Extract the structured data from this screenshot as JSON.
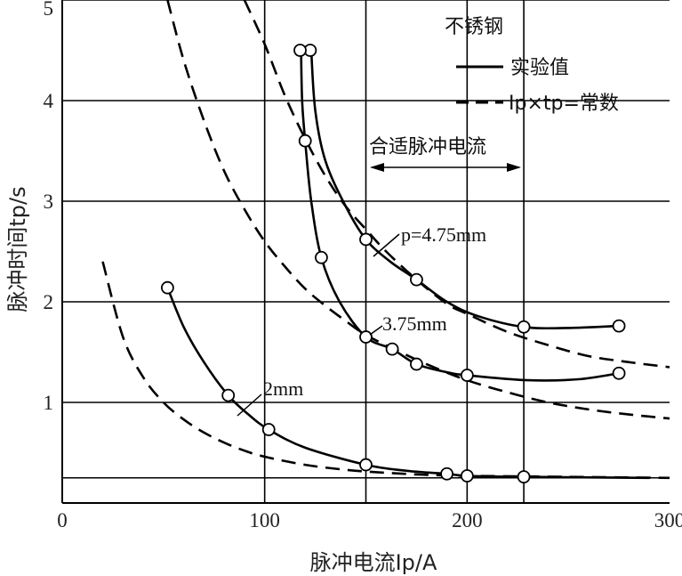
{
  "chart_data": {
    "type": "line",
    "xlabel": "脉冲电流Ip/A",
    "ylabel": "脉冲时间tp/s",
    "xlim": [
      0,
      300
    ],
    "ylim": [
      0,
      5
    ],
    "x_ticks": [
      "0",
      "100",
      "200",
      "300"
    ],
    "y_ticks": [
      "1",
      "2",
      "3",
      "4",
      "5"
    ],
    "grid": true,
    "legend": {
      "title": "不锈钢",
      "placement": "top-right",
      "entries": [
        {
          "label": "实验值",
          "style": "solid"
        },
        {
          "label": "Ip×tp=常数",
          "style": "dashed"
        }
      ]
    },
    "annotations": {
      "range_label": "合适脉冲电流",
      "range": [
        150,
        228
      ],
      "p_label": "p=4.75mm",
      "mid_label": "3.75mm",
      "low_label": "2mm"
    },
    "reference_line_y": 0.25,
    "series": [
      {
        "name": "p=4.75mm",
        "style": "solid",
        "points": [
          [
            122.5,
            4.5
          ],
          [
            150,
            2.62
          ],
          [
            175,
            2.22
          ],
          [
            228,
            1.75
          ],
          [
            275,
            1.76
          ]
        ],
        "markers": [
          [
            122.5,
            4.5
          ],
          [
            150,
            2.62
          ],
          [
            175,
            2.22
          ],
          [
            228,
            1.75
          ],
          [
            275,
            1.76
          ]
        ],
        "curve": [
          [
            123,
            4.5
          ],
          [
            125,
            3.9
          ],
          [
            130,
            3.4
          ],
          [
            140,
            2.95
          ],
          [
            150,
            2.62
          ],
          [
            162,
            2.4
          ],
          [
            175,
            2.22
          ],
          [
            190,
            2.0
          ],
          [
            205,
            1.86
          ],
          [
            228,
            1.75
          ],
          [
            250,
            1.74
          ],
          [
            275,
            1.76
          ]
        ]
      },
      {
        "name": "3.75mm",
        "style": "solid",
        "points": [
          [
            117.5,
            4.5
          ],
          [
            120,
            3.6
          ],
          [
            128,
            2.44
          ],
          [
            150,
            1.65
          ],
          [
            163,
            1.53
          ],
          [
            175,
            1.38
          ],
          [
            200,
            1.27
          ],
          [
            275,
            1.29
          ]
        ],
        "markers": [
          [
            117.5,
            4.5
          ],
          [
            120,
            3.6
          ],
          [
            128,
            2.44
          ],
          [
            150,
            1.65
          ],
          [
            163,
            1.53
          ],
          [
            175,
            1.38
          ],
          [
            200,
            1.27
          ],
          [
            275,
            1.29
          ]
        ],
        "curve": [
          [
            118,
            4.5
          ],
          [
            118.5,
            4.0
          ],
          [
            120,
            3.6
          ],
          [
            123,
            3.0
          ],
          [
            128,
            2.44
          ],
          [
            137,
            2.0
          ],
          [
            150,
            1.65
          ],
          [
            163,
            1.53
          ],
          [
            175,
            1.38
          ],
          [
            190,
            1.3
          ],
          [
            200,
            1.27
          ],
          [
            230,
            1.22
          ],
          [
            255,
            1.23
          ],
          [
            275,
            1.29
          ]
        ]
      },
      {
        "name": "2mm",
        "style": "solid",
        "points": [
          [
            52,
            2.14
          ],
          [
            82,
            1.07
          ],
          [
            102,
            0.73
          ],
          [
            150,
            0.38
          ],
          [
            190,
            0.29
          ],
          [
            200,
            0.27
          ],
          [
            228,
            0.26
          ]
        ],
        "markers": [
          [
            52,
            2.14
          ],
          [
            82,
            1.07
          ],
          [
            102,
            0.73
          ],
          [
            150,
            0.38
          ],
          [
            190,
            0.29
          ],
          [
            200,
            0.27
          ],
          [
            228,
            0.26
          ]
        ],
        "curve": [
          [
            52,
            2.14
          ],
          [
            60,
            1.75
          ],
          [
            70,
            1.4
          ],
          [
            82,
            1.07
          ],
          [
            92,
            0.88
          ],
          [
            102,
            0.73
          ],
          [
            120,
            0.55
          ],
          [
            150,
            0.38
          ],
          [
            170,
            0.32
          ],
          [
            190,
            0.29
          ],
          [
            200,
            0.27
          ],
          [
            228,
            0.26
          ],
          [
            290,
            0.25
          ]
        ]
      },
      {
        "name": "dashed-upper",
        "style": "dashed",
        "curve": [
          [
            90,
            5.0
          ],
          [
            100,
            4.56
          ],
          [
            110,
            4.05
          ],
          [
            120,
            3.62
          ],
          [
            130,
            3.25
          ],
          [
            140,
            2.95
          ],
          [
            150,
            2.72
          ],
          [
            160,
            2.5
          ],
          [
            175,
            2.22
          ],
          [
            190,
            1.98
          ],
          [
            200,
            1.88
          ],
          [
            220,
            1.7
          ],
          [
            240,
            1.57
          ],
          [
            260,
            1.46
          ],
          [
            280,
            1.4
          ],
          [
            300,
            1.35
          ]
        ]
      },
      {
        "name": "dashed-middle",
        "style": "dashed",
        "curve": [
          [
            52,
            5.0
          ],
          [
            60,
            4.4
          ],
          [
            70,
            3.8
          ],
          [
            80,
            3.3
          ],
          [
            90,
            2.92
          ],
          [
            100,
            2.6
          ],
          [
            110,
            2.35
          ],
          [
            120,
            2.13
          ],
          [
            130,
            1.96
          ],
          [
            140,
            1.81
          ],
          [
            150,
            1.67
          ],
          [
            165,
            1.52
          ],
          [
            180,
            1.38
          ],
          [
            200,
            1.22
          ],
          [
            220,
            1.1
          ],
          [
            240,
            1.0
          ],
          [
            260,
            0.93
          ],
          [
            280,
            0.88
          ],
          [
            300,
            0.84
          ]
        ]
      },
      {
        "name": "dashed-lower",
        "style": "dashed",
        "curve": [
          [
            20,
            2.4
          ],
          [
            30,
            1.65
          ],
          [
            40,
            1.25
          ],
          [
            50,
            1.0
          ],
          [
            60,
            0.83
          ],
          [
            70,
            0.7
          ],
          [
            80,
            0.6
          ],
          [
            90,
            0.52
          ],
          [
            100,
            0.46
          ],
          [
            120,
            0.38
          ],
          [
            140,
            0.33
          ],
          [
            160,
            0.3
          ],
          [
            180,
            0.28
          ],
          [
            200,
            0.27
          ],
          [
            250,
            0.26
          ],
          [
            300,
            0.25
          ]
        ]
      }
    ]
  }
}
